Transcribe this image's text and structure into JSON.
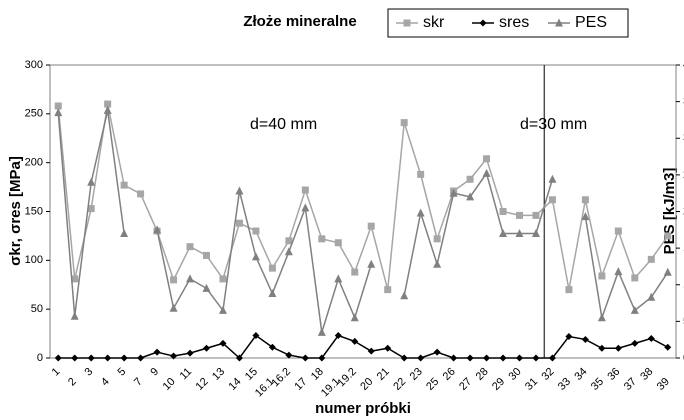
{
  "chart_data": {
    "type": "line",
    "title": "Złoże mineralne",
    "x_label": "numer próbki",
    "y_label": "σkr, σres [MPa]",
    "y2_label": "PES [kJ/m3]",
    "annotations": [
      "d=40 mm",
      "d=30 mm"
    ],
    "categories": [
      "1",
      "2",
      "3",
      "4",
      "5",
      "7",
      "9",
      "10",
      "11",
      "12",
      "13",
      "14",
      "15",
      "16.1",
      "16.2",
      "17",
      "18",
      "19.1",
      "19.2",
      "20",
      "21",
      "22",
      "23",
      "25",
      "26",
      "27",
      "28",
      "29",
      "30",
      "31",
      "32",
      "33",
      "34",
      "35",
      "36",
      "37",
      "38",
      "39"
    ],
    "series": [
      {
        "name": "skr",
        "color": "#a6a6a6",
        "marker": "square",
        "values": [
          258,
          81,
          153,
          260,
          177,
          168,
          130,
          80,
          114,
          105,
          81,
          138,
          130,
          92,
          120,
          172,
          122,
          118,
          88,
          135,
          70,
          241,
          188,
          122,
          171,
          183,
          204,
          150,
          146,
          146,
          162,
          70,
          162,
          84,
          130,
          82,
          101,
          125
        ]
      },
      {
        "name": "sres",
        "color": "#000000",
        "marker": "diamond",
        "values": [
          0,
          0,
          0,
          0,
          0,
          0,
          6,
          2,
          5,
          10,
          15,
          0,
          23,
          11,
          3,
          0,
          0,
          23,
          17,
          7,
          10,
          0,
          0,
          6,
          0,
          0,
          0,
          0,
          0,
          0,
          0,
          22,
          19,
          10,
          10,
          15,
          20,
          11
        ]
      },
      {
        "name": "PES",
        "color": "#808080",
        "marker": "triangle",
        "axis": "y2",
        "values": [
          335,
          57,
          240,
          338,
          170,
          null,
          175,
          68,
          108,
          95,
          65,
          228,
          138,
          88,
          145,
          205,
          35,
          108,
          55,
          128,
          null,
          85,
          198,
          128,
          225,
          220,
          252,
          170,
          170,
          170,
          244,
          null,
          193,
          55,
          118,
          65,
          83,
          117
        ]
      }
    ],
    "ylim": [
      0,
      300
    ],
    "yticks": [
      0,
      50,
      100,
      150,
      200,
      250,
      300
    ],
    "y2lim": [
      0,
      400
    ],
    "y2ticks": [
      0,
      50,
      100,
      150,
      200,
      250,
      300,
      350,
      400
    ],
    "grid": false,
    "legend": "top-right"
  }
}
